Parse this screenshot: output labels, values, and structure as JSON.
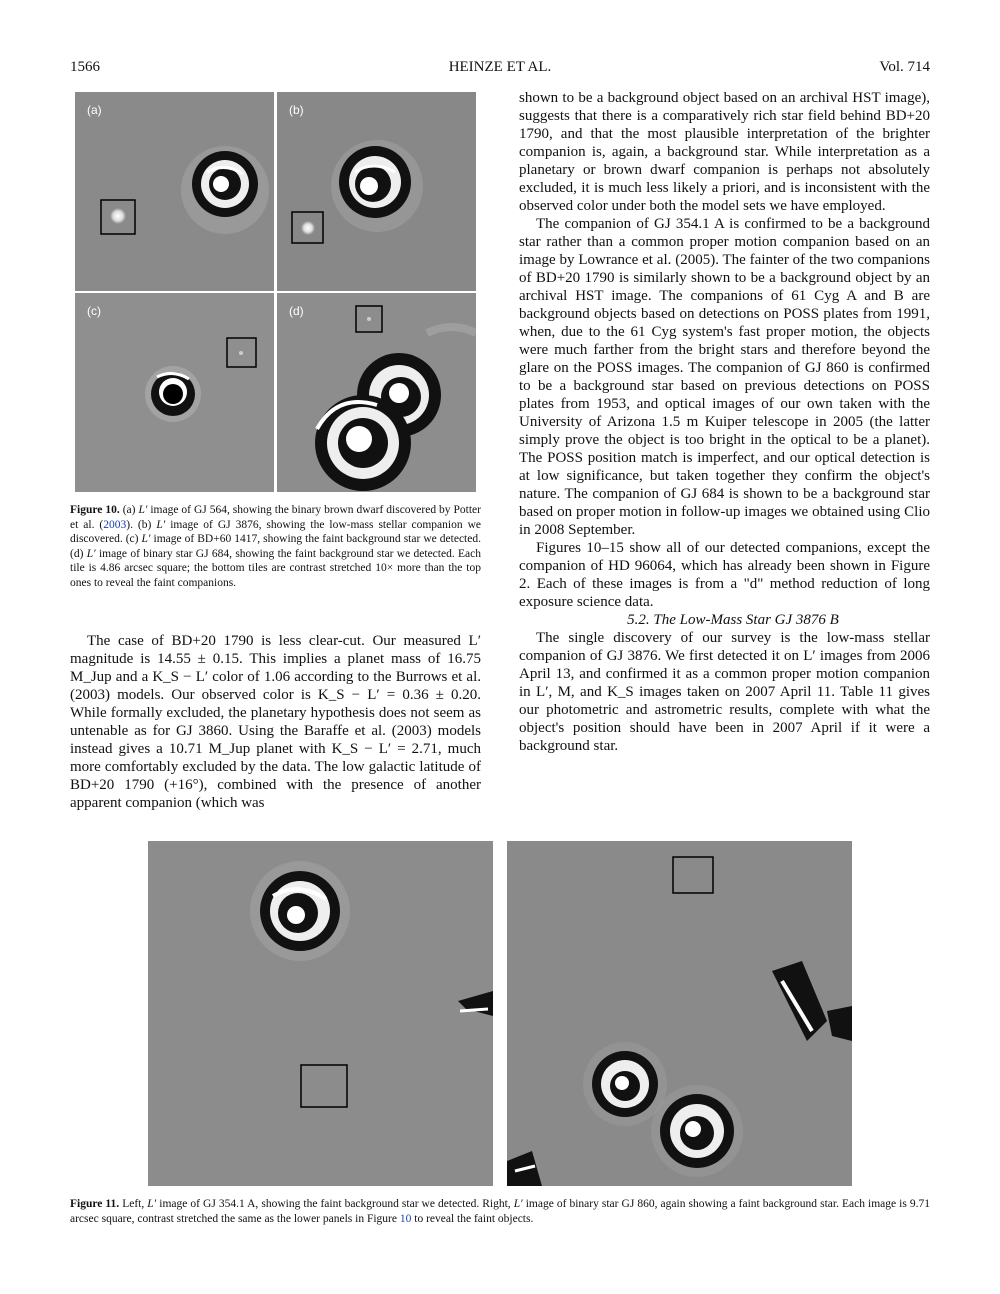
{
  "header": {
    "page": "1566",
    "authors": "HEINZE ET AL.",
    "volume": "Vol. 714"
  },
  "figure10": {
    "labels": {
      "a": "(a)",
      "b": "(b)",
      "c": "(c)",
      "d": "(d)"
    },
    "caption_label": "Figure 10.",
    "caption_parts": [
      " (a) ",
      "L′",
      " image of GJ 564, showing the binary brown dwarf discovered by Potter et al. (",
      "2003",
      "). (b) ",
      "L′",
      " image of GJ 3876, showing the low-mass stellar companion we discovered. (c) ",
      "L′",
      " image of BD+60 1417, showing the faint background star we detected. (d) ",
      "L′",
      " image of binary star GJ 684, showing the faint background star we detected. Each tile is 4.86 arcsec square; the bottom tiles are contrast stretched 10× more than the top ones to reveal the faint companions."
    ]
  },
  "figure11": {
    "caption_label": "Figure 11.",
    "caption_parts": [
      " Left, ",
      "L′",
      " image of GJ 354.1 A, showing the faint background star we detected. Right, ",
      "L′",
      " image of binary star GJ 860, again showing a faint background star. Each image is 9.71 arcsec square, contrast stretched the same as the lower panels in Figure ",
      "10",
      " to reveal the faint objects."
    ]
  },
  "left_col": {
    "p1": "The case of BD+20 1790 is less clear-cut. Our measured L′ magnitude is 14.55 ± 0.15. This implies a planet mass of 16.75 M_Jup and a K_S − L′ color of 1.06 according to the Burrows et al. (2003) models. Our observed color is K_S − L′ = 0.36 ± 0.20. While formally excluded, the planetary hypothesis does not seem as untenable as for GJ 3860. Using the Baraffe et al. (2003) models instead gives a 10.71 M_Jup planet with K_S − L′ = 2.71, much more comfortably excluded by the data. The low galactic latitude of BD+20 1790 (+16°), combined with the presence of another apparent companion (which was"
  },
  "right_col": {
    "p1": "shown to be a background object based on an archival HST image), suggests that there is a comparatively rich star field behind BD+20 1790, and that the most plausible interpretation of the brighter companion is, again, a background star. While interpretation as a planetary or brown dwarf companion is perhaps not absolutely excluded, it is much less likely a priori, and is inconsistent with the observed color under both the model sets we have employed.",
    "p2": "The companion of GJ 354.1 A is confirmed to be a background star rather than a common proper motion companion based on an image by Lowrance et al. (2005). The fainter of the two companions of BD+20 1790 is similarly shown to be a background object by an archival HST image. The companions of 61 Cyg A and B are background objects based on detections on POSS plates from 1991, when, due to the 61 Cyg system's fast proper motion, the objects were much farther from the bright stars and therefore beyond the glare on the POSS images. The companion of GJ 860 is confirmed to be a background star based on previous detections on POSS plates from 1953, and optical images of our own taken with the University of Arizona 1.5 m Kuiper telescope in 2005 (the latter simply prove the object is too bright in the optical to be a planet). The POSS position match is imperfect, and our optical detection is at low significance, but taken together they confirm the object's nature. The companion of GJ 684 is shown to be a background star based on proper motion in follow-up images we obtained using Clio in 2008 September.",
    "p3": "Figures 10–15 show all of our detected companions, except the companion of HD 96064, which has already been shown in Figure 2. Each of these images is from a \"d\" method reduction of long exposure science data.",
    "section": "5.2. The Low-Mass Star GJ 3876 B",
    "p4": "The single discovery of our survey is the low-mass stellar companion of GJ 3876. We first detected it on L′ images from 2006 April 13, and confirmed it as a common proper motion companion in L′, M, and K_S images taken on 2007 April 11. Table 11 gives our photometric and astrometric results, complete with what the object's position should have been in 2007 April if it were a background star."
  }
}
